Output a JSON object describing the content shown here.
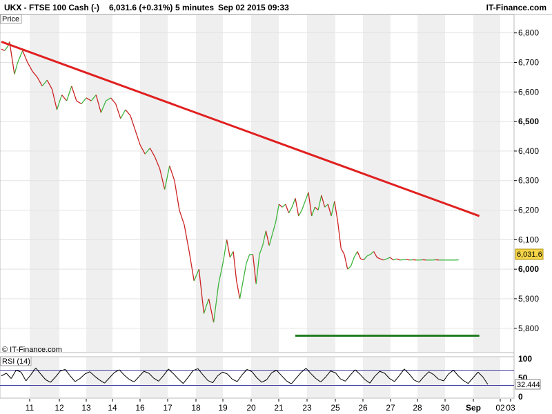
{
  "header": {
    "symbol": "UKX - FTSE 100 Cash (-)",
    "price_change": "6,031.6 (+0.31%)",
    "interval": "5 minutes",
    "datetime": "Sep 02 2015 09:33",
    "brand": "IT-Finance.com"
  },
  "panel_label": "Price",
  "watermark": "© IT-Finance.com",
  "rsi_label": "RSI (14)",
  "chart_data": [
    {
      "type": "line",
      "title": "UKX - FTSE 100 Cash (-)",
      "ylim": [
        5720,
        6860
      ],
      "y_ticks": [
        "6,800",
        "6,700",
        "6,600",
        "6,500",
        "6,400",
        "6,300",
        "6,200",
        "6,100",
        "6,000",
        "5,900",
        "5,800"
      ],
      "y_tick_values": [
        6800,
        6700,
        6600,
        6500,
        6400,
        6300,
        6200,
        6100,
        6000,
        5900,
        5800
      ],
      "bold_ticks": [
        "6,500",
        "6,000"
      ],
      "x_ticks": [
        "11",
        "12",
        "13",
        "14",
        "16",
        "17",
        "18",
        "19",
        "20",
        "21",
        "23",
        "25",
        "26",
        "27",
        "28",
        "30",
        "Sep",
        "02",
        "03"
      ],
      "last_price": "6,031.6",
      "grid": true,
      "up_color": "#3cb43c",
      "down_color": "#cc2222",
      "series": [
        {
          "x": [
            0,
            2,
            4,
            5,
            8,
            10,
            13,
            16,
            19,
            22,
            25,
            28,
            31,
            34,
            37,
            40,
            43,
            46,
            49,
            52,
            55,
            58,
            61,
            64,
            67,
            70,
            73,
            76,
            79,
            82,
            85,
            88,
            91,
            94,
            97,
            100,
            103,
            106,
            109,
            112,
            115,
            118,
            121,
            124,
            127,
            130,
            133,
            136,
            138,
            140,
            142,
            144,
            146,
            148,
            150,
            152,
            154,
            156,
            158,
            160,
            162,
            164,
            166,
            168,
            170,
            172,
            174,
            176,
            178,
            180,
            182,
            184,
            186,
            188,
            190,
            192,
            194,
            196,
            198,
            200,
            202,
            204,
            206,
            208,
            210,
            212,
            214,
            216,
            218,
            220,
            222,
            224,
            226,
            228,
            230,
            232,
            234,
            236,
            238,
            240,
            242,
            244,
            246,
            248,
            250,
            252,
            254,
            256,
            258,
            260,
            262,
            264,
            266,
            268,
            270,
            272,
            274,
            276,
            278,
            280
          ],
          "values": [
            6745,
            6740,
            6755,
            6770,
            6660,
            6700,
            6740,
            6700,
            6670,
            6650,
            6620,
            6640,
            6610,
            6540,
            6590,
            6570,
            6620,
            6570,
            6560,
            6580,
            6570,
            6590,
            6530,
            6570,
            6580,
            6560,
            6510,
            6540,
            6520,
            6470,
            6420,
            6390,
            6410,
            6380,
            6340,
            6270,
            6350,
            6300,
            6200,
            6150,
            6060,
            5960,
            6000,
            5850,
            5900,
            5820,
            5950,
            6030,
            6100,
            6040,
            6060,
            5960,
            5900,
            5960,
            6020,
            6050,
            6050,
            5950,
            6050,
            6080,
            6130,
            6080,
            6120,
            6160,
            6220,
            6210,
            6220,
            6190,
            6210,
            6240,
            6180,
            6200,
            6230,
            6260,
            6180,
            6210,
            6200,
            6250,
            6210,
            6220,
            6180,
            6230,
            6160,
            6070,
            6050,
            6000,
            6010,
            6040,
            6060,
            6035,
            6032,
            6045,
            6050,
            6060,
            6040,
            6035,
            6031,
            6035,
            6040,
            6031,
            6035,
            6031,
            6032,
            6033,
            6031,
            6032,
            6031,
            6031,
            6032,
            6031,
            6031,
            6031,
            6032,
            6031,
            6031,
            6031,
            6031,
            6031,
            6031,
            6031.6
          ]
        }
      ],
      "trendlines": [
        {
          "from": [
            0,
            6770
          ],
          "to": [
            280,
            6180
          ],
          "color": "#e02020"
        },
        {
          "from": [
            180,
            5775
          ],
          "to": [
            280,
            5775
          ],
          "color": "#1f7a1f"
        }
      ]
    },
    {
      "type": "line",
      "title": "RSI (14)",
      "ylim": [
        0,
        100
      ],
      "y_ticks": [
        "100",
        "50",
        "0"
      ],
      "y_tick_values": [
        100,
        50,
        0
      ],
      "levels": [
        70,
        30
      ],
      "last_value": "32.444",
      "series": [
        {
          "values": [
            55,
            62,
            48,
            70,
            65,
            42,
            58,
            76,
            60,
            45,
            38,
            52,
            68,
            72,
            55,
            40,
            48,
            60,
            66,
            54,
            44,
            36,
            50,
            64,
            71,
            57,
            46,
            39,
            53,
            67,
            62,
            49,
            41,
            56,
            73,
            61,
            47,
            35,
            51,
            69,
            74,
            58,
            43,
            37,
            55,
            65,
            60,
            46,
            40,
            58,
            72,
            66,
            50,
            38,
            45,
            63,
            70,
            56,
            42,
            34,
            49,
            64,
            75,
            61,
            48,
            39,
            52,
            68,
            63,
            47,
            41,
            57,
            71,
            59,
            45,
            36,
            54,
            67,
            62,
            48,
            40,
            56,
            73,
            60,
            44,
            38,
            53,
            66,
            58,
            46,
            42,
            60,
            70,
            55,
            43,
            35,
            50,
            65,
            52,
            32.444
          ]
        }
      ]
    }
  ]
}
